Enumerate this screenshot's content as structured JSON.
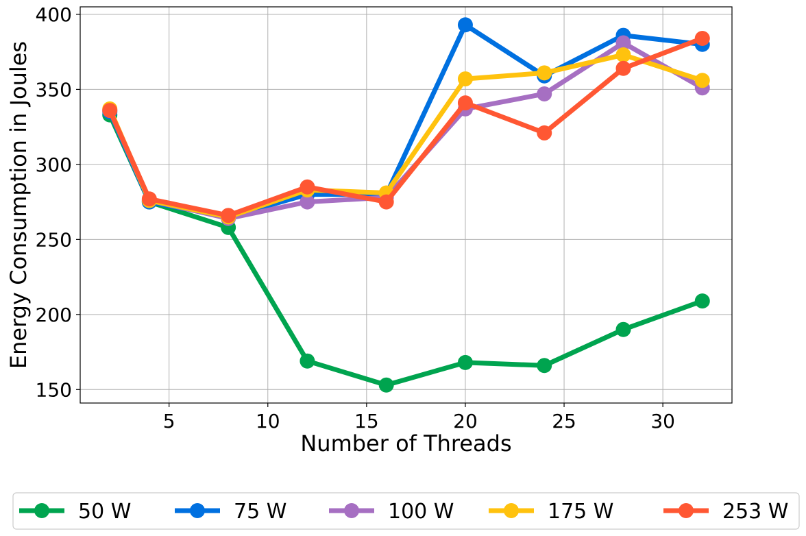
{
  "chart_data": {
    "type": "line",
    "title": "",
    "xlabel": "Number of Threads",
    "ylabel": "Energy Consumption in Joules",
    "x": [
      2,
      4,
      8,
      12,
      16,
      20,
      24,
      28,
      32
    ],
    "xlim": [
      0.5,
      33.5
    ],
    "ylim": [
      141,
      405
    ],
    "xticks": [
      5,
      10,
      15,
      20,
      25,
      30
    ],
    "yticks": [
      150,
      200,
      250,
      300,
      350,
      400
    ],
    "grid": true,
    "legend_position": "bottom-center",
    "series": [
      {
        "name": "50 W",
        "color": "#00a44f",
        "values": [
          333,
          275,
          258,
          169,
          153,
          168,
          166,
          190,
          209
        ]
      },
      {
        "name": "75 W",
        "color": "#0070e0",
        "values": [
          335,
          275,
          265,
          280,
          280,
          393,
          359,
          386,
          380
        ]
      },
      {
        "name": "100 W",
        "color": "#a66fc2",
        "values": [
          336,
          276,
          264,
          275,
          278,
          337,
          347,
          381,
          351
        ]
      },
      {
        "name": "175 W",
        "color": "#ffc20e",
        "values": [
          337,
          276,
          265,
          283,
          281,
          357,
          361,
          373,
          356
        ]
      },
      {
        "name": "253 W",
        "color": "#ff5733",
        "values": [
          336,
          277,
          266,
          285,
          275,
          341,
          321,
          364,
          384
        ]
      }
    ]
  }
}
